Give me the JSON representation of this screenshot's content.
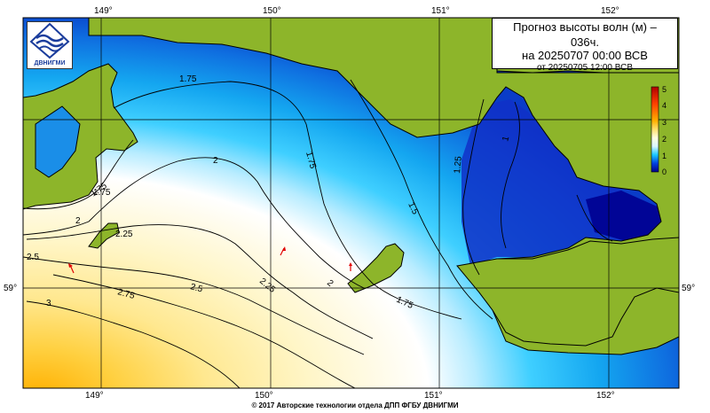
{
  "title": {
    "line1": "Прогноз высоты волн (м) –",
    "line2": "036ч.",
    "line3": "на 20250707 00:00 ВСВ",
    "line4": "от 20250705 12:00 ВСВ"
  },
  "logo": {
    "icon": "dvnigmi-logo-icon",
    "text": "ДВНИГМИ"
  },
  "footer": "© 2017 Авторские технологии отдела ДПП ФГБУ ДВНИГМИ",
  "axes": {
    "top_ticks": [
      "149°",
      "150°",
      "151°",
      "152°"
    ],
    "bottom_ticks": [
      "149°",
      "150°",
      "151°",
      "152°"
    ],
    "lat_ticks": [
      "59°"
    ]
  },
  "colorbar": {
    "labels": [
      "0",
      "1",
      "2",
      "3",
      "4",
      "5"
    ],
    "colors": [
      "#00008b",
      "#0050e0",
      "#19c8ff",
      "#ffffff",
      "#ffeea0",
      "#ffc000",
      "#ff6000",
      "#c00000"
    ]
  },
  "contour_labels": [
    "1.75",
    "1.75",
    "2",
    "1.75",
    "1.25",
    "1",
    "1.75",
    "2",
    "2.25",
    "2.5",
    "2.25",
    "2.5",
    "2",
    "1.5",
    "1.75",
    "2.75",
    "3"
  ],
  "colors": {
    "land": "#8db52a",
    "land_outline": "#000000",
    "grid": "#000000"
  }
}
